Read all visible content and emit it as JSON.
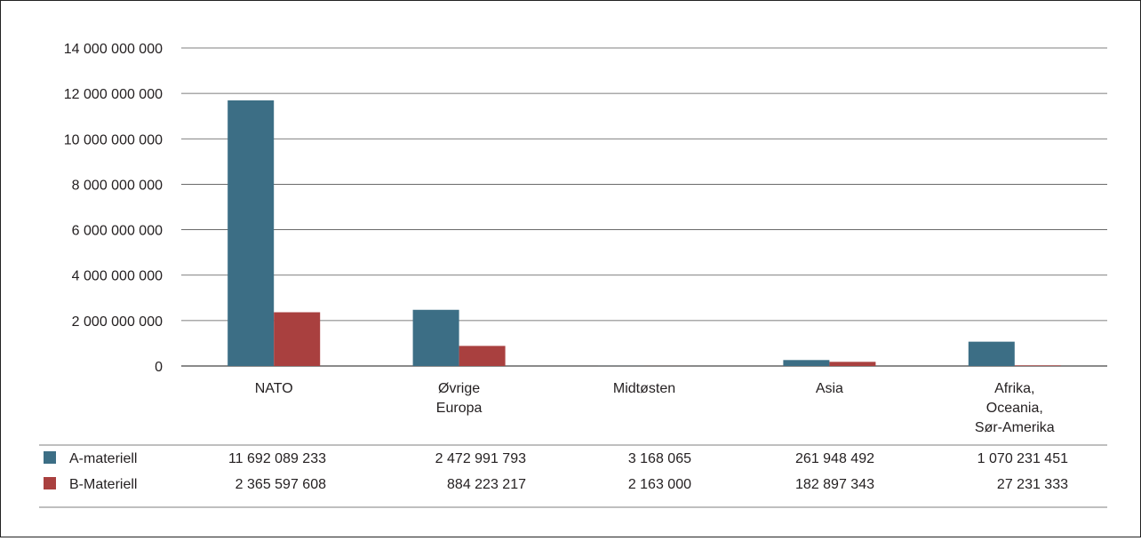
{
  "chart_data": {
    "type": "bar",
    "title": "",
    "xlabel": "",
    "ylabel": "",
    "ylim": [
      0,
      14000000000
    ],
    "yticks": [
      0,
      2000000000,
      4000000000,
      6000000000,
      8000000000,
      10000000000,
      12000000000,
      14000000000
    ],
    "ytick_labels": [
      "0",
      "2 000 000 000",
      "4 000 000 000",
      "6 000 000 000",
      "8 000 000 000",
      "10 000 000 000",
      "12 000 000 000",
      "14 000 000 000"
    ],
    "grid": true,
    "legend_placement": "bottom-table",
    "categories": [
      [
        "NATO"
      ],
      [
        "Øvrige",
        "Europa"
      ],
      [
        "Midtøsten"
      ],
      [
        "Asia"
      ],
      [
        "Afrika,",
        "Oceania,",
        "Sør-Amerika"
      ]
    ],
    "series": [
      {
        "name": "A-materiell",
        "color": "#3c6e85",
        "values": [
          11692089233,
          2472991793,
          3168065,
          261948492,
          1070231451
        ],
        "value_labels": [
          "11 692 089 233",
          "2 472 991 793",
          "3 168 065",
          "261 948 492",
          "1 070 231 451"
        ]
      },
      {
        "name": "B-Materiell",
        "color": "#a9403f",
        "values": [
          2365597608,
          884223217,
          2163000,
          182897343,
          27231333
        ],
        "value_labels": [
          "2 365 597 608",
          "884 223 217",
          "2 163 000",
          "182 897 343",
          "27 231 333"
        ]
      }
    ]
  }
}
